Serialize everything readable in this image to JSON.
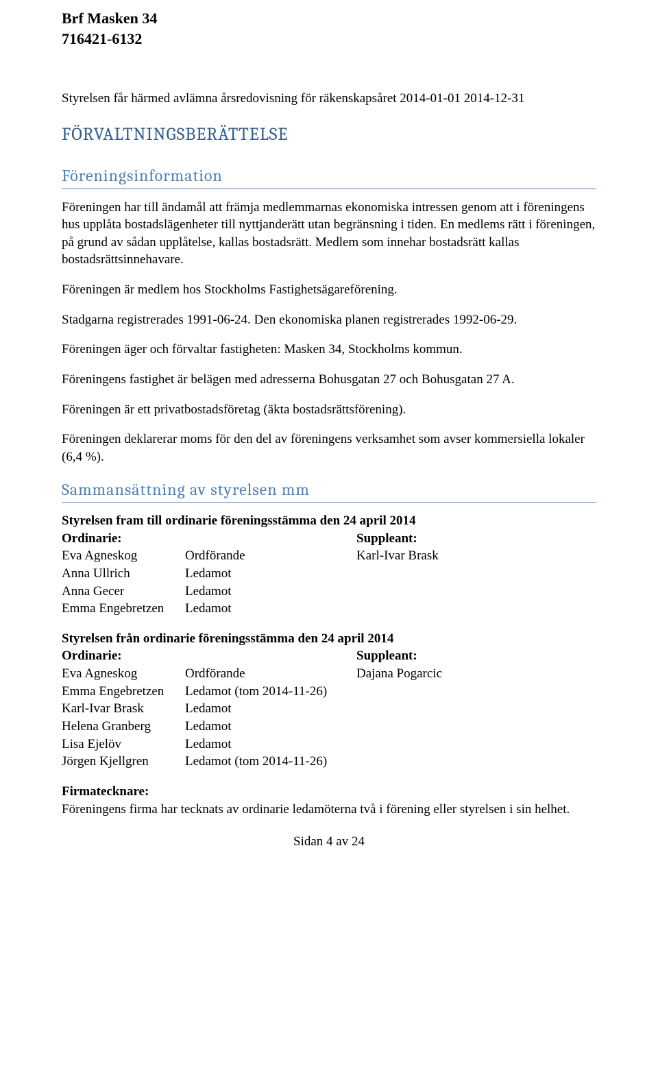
{
  "header": {
    "org_name": "Brf Masken 34",
    "org_number": "716421-6132"
  },
  "intro": "Styrelsen får härmed avlämna årsredovisning för räkenskapsåret 2014-01-01 2014-12-31",
  "main_heading": "FÖRVALTNINGSBERÄTTELSE",
  "section1": {
    "heading": "Föreningsinformation",
    "p1": "Föreningen har till ändamål att främja medlemmarnas ekonomiska intressen genom att i föreningens hus upplåta bostadslägenheter till nyttjanderätt utan begränsning i tiden. En medlems rätt i föreningen, på grund av sådan upplåtelse, kallas bostadsrätt. Medlem som innehar bostadsrätt kallas bostadsrättsinnehavare.",
    "p2": "Föreningen är medlem hos Stockholms Fastighetsägareförening.",
    "p3": "Stadgarna registrerades 1991-06-24. Den ekonomiska planen registrerades 1992-06-29.",
    "p4": "Föreningen äger och förvaltar fastigheten: Masken 34, Stockholms kommun.",
    "p5": "Föreningens fastighet är belägen med adresserna Bohusgatan 27 och Bohusgatan 27 A.",
    "p6": "Föreningen är ett privatbostadsföretag (äkta bostadsrättsförening).",
    "p7": "Föreningen deklarerar moms för den del av föreningens verksamhet som avser kommersiella lokaler (6,4 %)."
  },
  "section2": {
    "heading": "Sammansättning av styrelsen mm",
    "board1": {
      "title": "Styrelsen fram till ordinarie föreningsstämma den 24 april 2014",
      "label_ordinarie": "Ordinarie:",
      "label_suppleant": "Suppleant:",
      "rows": [
        {
          "name": "Eva Agneskog",
          "role": "Ordförande",
          "suppleant": "Karl-Ivar Brask"
        },
        {
          "name": "Anna Ullrich",
          "role": "Ledamot",
          "suppleant": ""
        },
        {
          "name": "Anna Gecer",
          "role": "Ledamot",
          "suppleant": ""
        },
        {
          "name": "Emma Engebretzen",
          "role": "Ledamot",
          "suppleant": ""
        }
      ]
    },
    "board2": {
      "title": "Styrelsen från ordinarie föreningsstämma den 24 april 2014",
      "label_ordinarie": "Ordinarie:",
      "label_suppleant": "Suppleant:",
      "rows": [
        {
          "name": "Eva Agneskog",
          "role": "Ordförande",
          "suppleant": "Dajana Pogarcic"
        },
        {
          "name": "Emma Engebretzen",
          "role": "Ledamot (tom 2014-11-26)",
          "suppleant": ""
        },
        {
          "name": "Karl-Ivar Brask",
          "role": "Ledamot",
          "suppleant": ""
        },
        {
          "name": "Helena Granberg",
          "role": "Ledamot",
          "suppleant": ""
        },
        {
          "name": "Lisa Ejelöv",
          "role": "Ledamot",
          "suppleant": ""
        },
        {
          "name": "Jörgen Kjellgren",
          "role": "Ledamot (tom 2014-11-26)",
          "suppleant": ""
        }
      ]
    },
    "firma": {
      "heading": "Firmatecknare:",
      "text": "Föreningens firma har tecknats av ordinarie ledamöterna två i förening eller styrelsen i sin helhet."
    }
  },
  "footer": "Sidan 4 av 24"
}
